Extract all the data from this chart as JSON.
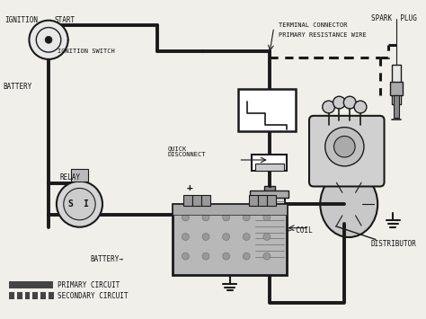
{
  "figsize": [
    4.74,
    3.55
  ],
  "dpi": 100,
  "bg_color": "#f0efea",
  "line_color": "#1a1a1a",
  "text_color": "#111111",
  "labels": {
    "ignition": "IGNITION",
    "start": "START",
    "ignition_switch": "IGNITION SWITCH",
    "battery_left": "BATTERY",
    "terminal_connector": "TERMINAL CONNECTOR",
    "primary_resistance": "PRIMARY RESISTANCE WIRE",
    "spark_plug": "SPARK  PLUG",
    "quick_disconnect": "QUICK\nDISCONNECT",
    "relay": "RELAY",
    "coil": "COIL",
    "battery_label": "BATTERY",
    "distributor": "DISTRIBUTOR",
    "primary_circuit": "PRIMARY CIRCUIT",
    "secondary_circuit": "SECONDARY CIRCUIT"
  }
}
